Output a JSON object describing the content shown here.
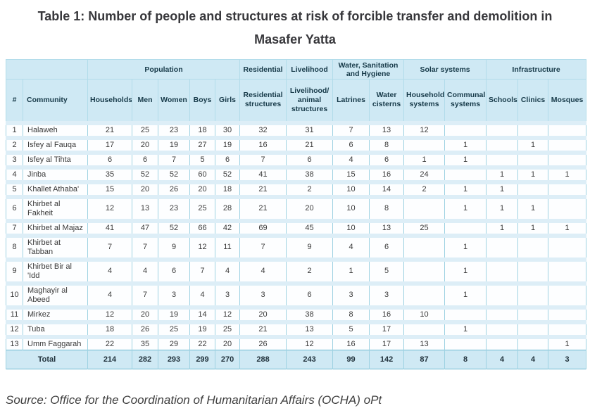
{
  "title": "Table 1: Number of people and structures at risk of forcible transfer and demolition in Masafer Yatta",
  "source": "Source: Office for the Coordination of Humanitarian Affairs (OCHA) oPt",
  "colors": {
    "header_bg": "#cfe9f4",
    "row_band": "#ddeef7",
    "outer_border": "#6cb9d1",
    "grid_line": "#9ed2e2",
    "text": "#3a3a3a",
    "title_text": "#37373b"
  },
  "table": {
    "group_headers": [
      {
        "label": "",
        "span": 2
      },
      {
        "label": "Population",
        "span": 5
      },
      {
        "label": "Residential",
        "span": 1
      },
      {
        "label": "Livelihood",
        "span": 1
      },
      {
        "label": "Water, Sanitation and Hygiene",
        "span": 2
      },
      {
        "label": "Solar systems",
        "span": 2
      },
      {
        "label": "Infrastructure",
        "span": 3
      }
    ],
    "columns": [
      "#",
      "Community",
      "Households",
      "Men",
      "Women",
      "Boys",
      "Girls",
      "Residential structures",
      "Livelihood/ animal structures",
      "Latrines",
      "Water cisterns",
      "Household systems",
      "Communal systems",
      "Schools",
      "Clinics",
      "Mosques"
    ],
    "rows": [
      [
        "1",
        "Halaweh",
        "21",
        "25",
        "23",
        "18",
        "30",
        "32",
        "31",
        "7",
        "13",
        "12",
        "",
        "",
        "",
        ""
      ],
      [
        "2",
        "Isfey al Fauqa",
        "17",
        "20",
        "19",
        "27",
        "19",
        "16",
        "21",
        "6",
        "8",
        "",
        "1",
        "",
        "1",
        ""
      ],
      [
        "3",
        "Isfey al Tihta",
        "6",
        "6",
        "7",
        "5",
        "6",
        "7",
        "6",
        "4",
        "6",
        "1",
        "1",
        "",
        "",
        ""
      ],
      [
        "4",
        "Jinba",
        "35",
        "52",
        "52",
        "60",
        "52",
        "41",
        "38",
        "15",
        "16",
        "24",
        "",
        "1",
        "1",
        "1"
      ],
      [
        "5",
        "Khallet Athaba'",
        "15",
        "20",
        "26",
        "20",
        "18",
        "21",
        "2",
        "10",
        "14",
        "2",
        "1",
        "1",
        "",
        ""
      ],
      [
        "6",
        "Khirbet al Fakheit",
        "12",
        "13",
        "23",
        "25",
        "28",
        "21",
        "20",
        "10",
        "8",
        "",
        "1",
        "1",
        "1",
        ""
      ],
      [
        "7",
        "Khirbet al Majaz",
        "41",
        "47",
        "52",
        "66",
        "42",
        "69",
        "45",
        "10",
        "13",
        "25",
        "",
        "1",
        "1",
        "1"
      ],
      [
        "8",
        "Khirbet at Tabban",
        "7",
        "7",
        "9",
        "12",
        "11",
        "7",
        "9",
        "4",
        "6",
        "",
        "1",
        "",
        "",
        ""
      ],
      [
        "9",
        "Khirbet Bir al 'Idd",
        "4",
        "4",
        "6",
        "7",
        "4",
        "4",
        "2",
        "1",
        "5",
        "",
        "1",
        "",
        "",
        ""
      ],
      [
        "10",
        "Maghayir al Abeed",
        "4",
        "7",
        "3",
        "4",
        "3",
        "3",
        "6",
        "3",
        "3",
        "",
        "1",
        "",
        "",
        ""
      ],
      [
        "11",
        "Mirkez",
        "12",
        "20",
        "19",
        "14",
        "12",
        "20",
        "38",
        "8",
        "16",
        "10",
        "",
        "",
        "",
        ""
      ],
      [
        "12",
        "Tuba",
        "18",
        "26",
        "25",
        "19",
        "25",
        "21",
        "13",
        "5",
        "17",
        "",
        "1",
        "",
        "",
        ""
      ],
      [
        "13",
        "Umm Faggarah",
        "22",
        "35",
        "29",
        "22",
        "20",
        "26",
        "12",
        "16",
        "17",
        "13",
        "",
        "",
        "",
        "1"
      ]
    ],
    "total": {
      "label": "Total",
      "values": [
        "214",
        "282",
        "293",
        "299",
        "270",
        "288",
        "243",
        "99",
        "142",
        "87",
        "8",
        "4",
        "4",
        "3"
      ]
    }
  }
}
